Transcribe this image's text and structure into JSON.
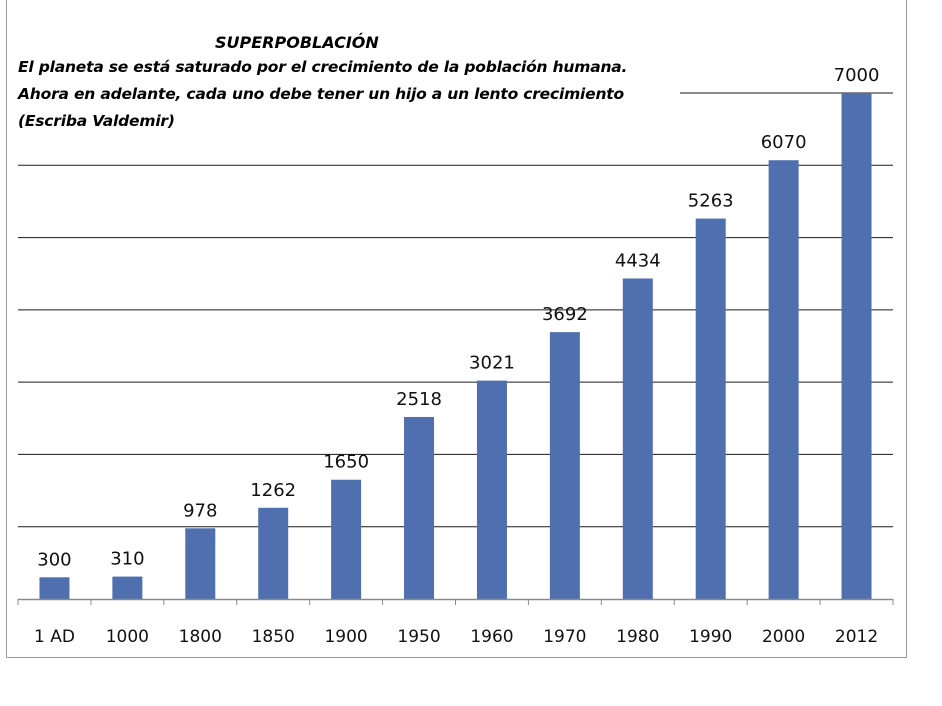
{
  "chart_data": {
    "type": "bar",
    "title": "SUPERPOBLACIÓN",
    "subtitle": "El planeta se está saturado por el crecimiento de la población humana. Ahora en adelante, cada uno debe tener un hijo a un lento crecimiento (Escriba Valdemir)",
    "categories": [
      "1 AD",
      "1000",
      "1800",
      "1850",
      "1900",
      "1950",
      "1960",
      "1970",
      "1980",
      "1990",
      "2000",
      "2012"
    ],
    "values": [
      300,
      310,
      978,
      1262,
      1650,
      2518,
      3021,
      3692,
      4434,
      5263,
      6070,
      7000
    ],
    "ylim": [
      0,
      7000
    ],
    "gridlines": true,
    "xlabel": "",
    "ylabel": "",
    "bar_color": "#4F6FAE"
  }
}
